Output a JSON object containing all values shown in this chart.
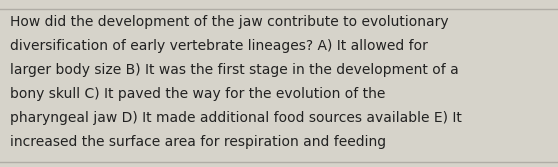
{
  "lines": [
    "How did the development of the jaw contribute to evolutionary",
    "diversification of early vertebrate lineages? A) It allowed for",
    "larger body size B) It was the first stage in the development of a",
    "bony skull C) It paved the way for the evolution of the",
    "pharyngeal jaw D) It made additional food sources available E) It",
    "increased the surface area for respiration and feeding"
  ],
  "background_color": "#d6d3ca",
  "text_color": "#222222",
  "font_size": 10.0,
  "separator_color": "#b0ada6",
  "fig_width": 5.58,
  "fig_height": 1.67,
  "dpi": 100
}
